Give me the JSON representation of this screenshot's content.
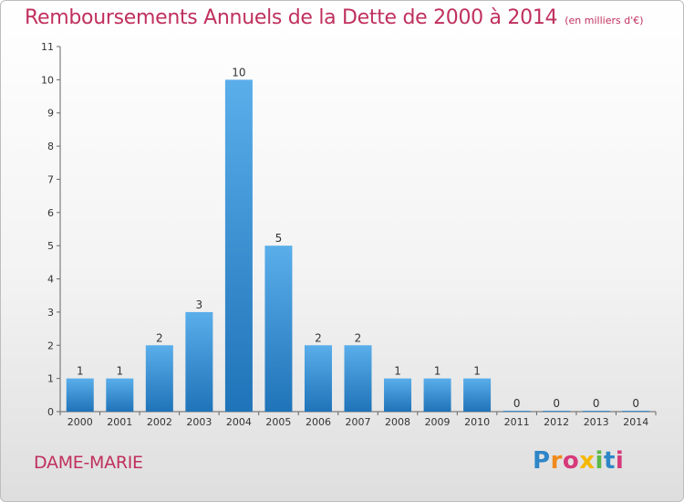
{
  "header": {
    "title": "Remboursements Annuels de la Dette de 2000 à 2014",
    "unit": "(en milliers d'€)"
  },
  "footer": {
    "commune": "DAME-MARIE",
    "logo_letters": [
      {
        "char": "P",
        "color": "#2e86c8"
      },
      {
        "char": "r",
        "color": "#f08a1c"
      },
      {
        "char": "o",
        "color": "#d63a7a"
      },
      {
        "char": "x",
        "color": "#f5b800"
      },
      {
        "char": "i",
        "color": "#5bb84a"
      },
      {
        "char": "t",
        "color": "#2e86c8"
      },
      {
        "char": "i",
        "color": "#d63a7a"
      }
    ]
  },
  "chart_data": {
    "type": "bar",
    "title": "Remboursements Annuels de la Dette de 2000 à 2014",
    "subtitle": "(en milliers d'€)",
    "categories": [
      "2000",
      "2001",
      "2002",
      "2003",
      "2004",
      "2005",
      "2006",
      "2007",
      "2008",
      "2009",
      "2010",
      "2011",
      "2012",
      "2013",
      "2014"
    ],
    "values": [
      1,
      1,
      2,
      3,
      10,
      5,
      2,
      2,
      1,
      1,
      1,
      0,
      0,
      0,
      0
    ],
    "ylim": [
      0,
      11
    ],
    "yticks": [
      0,
      1,
      2,
      3,
      4,
      5,
      6,
      7,
      8,
      9,
      10,
      11
    ],
    "xlabel": "",
    "ylabel": "",
    "grid": false,
    "bar_color": "#3a94d8"
  }
}
